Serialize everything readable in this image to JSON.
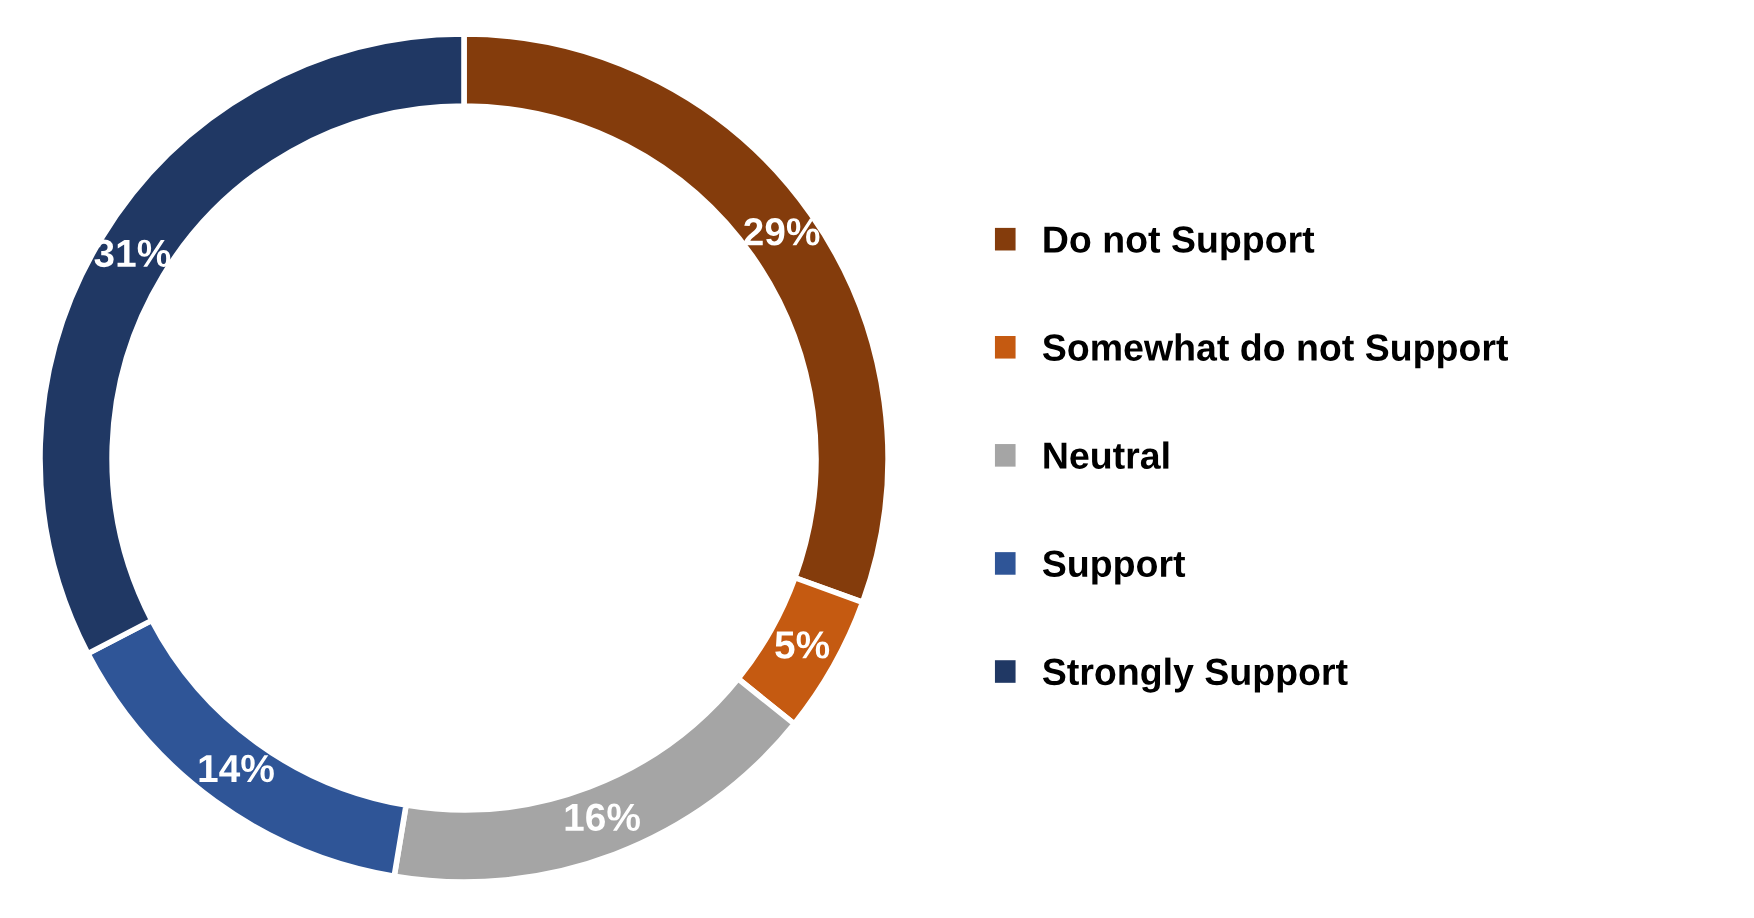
{
  "chart_data": {
    "type": "donut",
    "categories": [
      "Do not Support",
      "Somewhat do not Support",
      "Neutral",
      "Support",
      "Strongly Support"
    ],
    "values": [
      29,
      5,
      16,
      14,
      31
    ],
    "colors": [
      "#843c0c",
      "#c55a11",
      "#a5a5a5",
      "#2f5597",
      "#203864"
    ],
    "value_labels": [
      "29%",
      "5%",
      "16%",
      "14%",
      "31%"
    ],
    "legend": "right"
  }
}
